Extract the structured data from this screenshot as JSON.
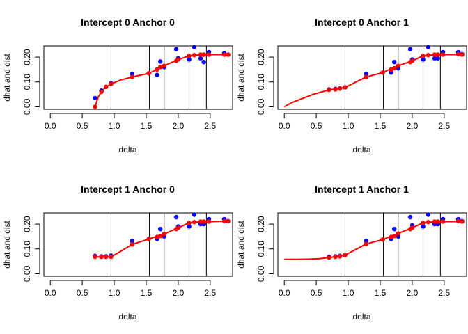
{
  "chart_data": [
    {
      "type": "scatter",
      "title": "Intercept 0 Anchor 0",
      "xlabel": "delta",
      "ylabel": "dhat and dist",
      "xlim": [
        -0.1,
        2.85
      ],
      "ylim": [
        -0.01,
        0.245
      ],
      "xticks": [
        "0.0",
        "0.5",
        "1.0",
        "1.5",
        "2.0",
        "2.5"
      ],
      "yticks": [
        "0.00",
        "0.10",
        "0.20"
      ],
      "vlines": [
        0.95,
        1.55,
        1.78,
        2.17,
        2.44
      ],
      "series": [
        {
          "color": "#0000ff",
          "x": [
            0.7,
            0.8,
            0.87,
            0.95,
            1.28,
            1.54,
            1.67,
            1.72,
            1.78,
            1.97,
            2.0,
            2.17,
            2.25,
            2.35,
            2.4,
            2.48,
            2.72,
            2.78
          ],
          "y": [
            0.035,
            0.065,
            0.08,
            0.095,
            0.132,
            0.135,
            0.128,
            0.182,
            0.16,
            0.232,
            0.195,
            0.19,
            0.24,
            0.195,
            0.18,
            0.22,
            0.216,
            0.21
          ]
        },
        {
          "color": "#ff0000",
          "x": [
            0.7,
            0.8,
            0.87,
            0.95,
            1.28,
            1.54,
            1.67,
            1.72,
            1.78,
            1.97,
            2.0,
            2.17,
            2.25,
            2.35,
            2.4,
            2.48,
            2.72,
            2.78
          ],
          "y": [
            0.0,
            0.06,
            0.08,
            0.092,
            0.12,
            0.135,
            0.15,
            0.16,
            0.165,
            0.185,
            0.19,
            0.205,
            0.208,
            0.21,
            0.21,
            0.21,
            0.21,
            0.21
          ]
        },
        {
          "color": "#ff0000",
          "curve": true,
          "x": [
            0.7,
            0.75,
            0.8,
            0.87,
            0.95,
            1.1,
            1.28,
            1.54,
            1.67,
            1.78,
            2.0,
            2.17,
            2.35,
            2.48,
            2.78
          ],
          "y": [
            0.0,
            0.04,
            0.06,
            0.08,
            0.092,
            0.108,
            0.12,
            0.135,
            0.15,
            0.165,
            0.19,
            0.205,
            0.21,
            0.21,
            0.21
          ]
        }
      ]
    },
    {
      "type": "scatter",
      "title": "Intercept 0 Anchor 1",
      "xlabel": "delta",
      "ylabel": "dhat and dist",
      "xlim": [
        -0.1,
        2.85
      ],
      "ylim": [
        -0.01,
        0.245
      ],
      "xticks": [
        "0.0",
        "0.5",
        "1.0",
        "1.5",
        "2.0",
        "2.5"
      ],
      "yticks": [
        "0.00",
        "0.10",
        "0.20"
      ],
      "vlines": [
        0.95,
        1.55,
        1.78,
        2.17,
        2.44
      ],
      "series": [
        {
          "color": "#0000ff",
          "x": [
            0.7,
            0.8,
            0.87,
            0.95,
            1.28,
            1.54,
            1.67,
            1.72,
            1.78,
            1.97,
            2.0,
            2.17,
            2.25,
            2.35,
            2.4,
            2.48,
            2.72,
            2.78
          ],
          "y": [
            0.07,
            0.072,
            0.074,
            0.078,
            0.132,
            0.138,
            0.138,
            0.18,
            0.155,
            0.232,
            0.19,
            0.19,
            0.24,
            0.195,
            0.195,
            0.22,
            0.22,
            0.212
          ]
        },
        {
          "color": "#ff0000",
          "x": [
            0.7,
            0.8,
            0.87,
            0.95,
            1.28,
            1.54,
            1.67,
            1.72,
            1.78,
            1.97,
            2.0,
            2.17,
            2.25,
            2.35,
            2.4,
            2.48,
            2.72,
            2.78
          ],
          "y": [
            0.068,
            0.07,
            0.073,
            0.078,
            0.12,
            0.138,
            0.15,
            0.155,
            0.165,
            0.18,
            0.185,
            0.205,
            0.208,
            0.21,
            0.21,
            0.21,
            0.212,
            0.21
          ]
        },
        {
          "color": "#ff0000",
          "curve": true,
          "x": [
            0.0,
            0.1,
            0.25,
            0.45,
            0.7,
            0.95,
            1.28,
            1.54,
            1.78,
            2.0,
            2.17,
            2.35,
            2.5,
            2.78
          ],
          "y": [
            0.0,
            0.015,
            0.03,
            0.05,
            0.068,
            0.078,
            0.12,
            0.138,
            0.165,
            0.185,
            0.205,
            0.21,
            0.21,
            0.21
          ]
        }
      ]
    },
    {
      "type": "scatter",
      "title": "Intercept 1 Anchor 0",
      "xlabel": "delta",
      "ylabel": "dhat and dist",
      "xlim": [
        -0.1,
        2.85
      ],
      "ylim": [
        -0.01,
        0.245
      ],
      "xticks": [
        "0.0",
        "0.5",
        "1.0",
        "1.5",
        "2.0",
        "2.5"
      ],
      "yticks": [
        "0.00",
        "0.10",
        "0.20"
      ],
      "vlines": [
        0.95,
        1.55,
        1.78,
        2.17,
        2.44
      ],
      "series": [
        {
          "color": "#0000ff",
          "x": [
            0.7,
            0.8,
            0.87,
            0.95,
            1.28,
            1.54,
            1.67,
            1.72,
            1.78,
            1.97,
            2.0,
            2.17,
            2.25,
            2.35,
            2.4,
            2.48,
            2.72,
            2.78
          ],
          "y": [
            0.072,
            0.07,
            0.07,
            0.073,
            0.132,
            0.14,
            0.14,
            0.18,
            0.15,
            0.228,
            0.19,
            0.19,
            0.238,
            0.2,
            0.2,
            0.22,
            0.22,
            0.212
          ]
        },
        {
          "color": "#ff0000",
          "x": [
            0.7,
            0.8,
            0.87,
            0.95,
            1.28,
            1.54,
            1.67,
            1.72,
            1.78,
            1.97,
            2.0,
            2.17,
            2.25,
            2.35,
            2.4,
            2.48,
            2.72,
            2.78
          ],
          "y": [
            0.068,
            0.068,
            0.068,
            0.068,
            0.118,
            0.14,
            0.148,
            0.152,
            0.16,
            0.18,
            0.185,
            0.205,
            0.208,
            0.21,
            0.21,
            0.21,
            0.212,
            0.212
          ]
        },
        {
          "color": "#ff0000",
          "curve": true,
          "x": [
            0.7,
            0.8,
            0.95,
            1.1,
            1.28,
            1.54,
            1.78,
            2.0,
            2.17,
            2.35,
            2.5,
            2.78
          ],
          "y": [
            0.068,
            0.068,
            0.068,
            0.09,
            0.118,
            0.14,
            0.16,
            0.185,
            0.205,
            0.21,
            0.21,
            0.212
          ]
        }
      ]
    },
    {
      "type": "scatter",
      "title": "Intercept 1 Anchor 1",
      "xlabel": "delta",
      "ylabel": "dhat and dist",
      "xlim": [
        -0.1,
        2.85
      ],
      "ylim": [
        -0.01,
        0.245
      ],
      "xticks": [
        "0.0",
        "0.5",
        "1.0",
        "1.5",
        "2.0",
        "2.5"
      ],
      "yticks": [
        "0.00",
        "0.10",
        "0.20"
      ],
      "vlines": [
        0.95,
        1.55,
        1.78,
        2.17,
        2.44
      ],
      "series": [
        {
          "color": "#0000ff",
          "x": [
            0.7,
            0.8,
            0.87,
            0.95,
            1.28,
            1.54,
            1.67,
            1.72,
            1.78,
            1.97,
            2.0,
            2.17,
            2.25,
            2.35,
            2.4,
            2.48,
            2.72,
            2.78
          ],
          "y": [
            0.068,
            0.07,
            0.072,
            0.075,
            0.132,
            0.138,
            0.14,
            0.18,
            0.15,
            0.228,
            0.195,
            0.19,
            0.238,
            0.2,
            0.2,
            0.22,
            0.22,
            0.212
          ]
        },
        {
          "color": "#ff0000",
          "x": [
            0.7,
            0.8,
            0.87,
            0.95,
            1.28,
            1.54,
            1.67,
            1.72,
            1.78,
            1.97,
            2.0,
            2.17,
            2.25,
            2.35,
            2.4,
            2.48,
            2.72,
            2.78
          ],
          "y": [
            0.065,
            0.068,
            0.07,
            0.075,
            0.12,
            0.138,
            0.148,
            0.152,
            0.162,
            0.18,
            0.185,
            0.205,
            0.208,
            0.21,
            0.21,
            0.21,
            0.212,
            0.21
          ]
        },
        {
          "color": "#ff0000",
          "curve": true,
          "x": [
            0.0,
            0.2,
            0.4,
            0.55,
            0.7,
            0.95,
            1.28,
            1.54,
            1.78,
            2.0,
            2.17,
            2.35,
            2.5,
            2.78
          ],
          "y": [
            0.058,
            0.058,
            0.059,
            0.061,
            0.065,
            0.075,
            0.12,
            0.138,
            0.162,
            0.185,
            0.205,
            0.21,
            0.21,
            0.21
          ]
        }
      ]
    }
  ]
}
